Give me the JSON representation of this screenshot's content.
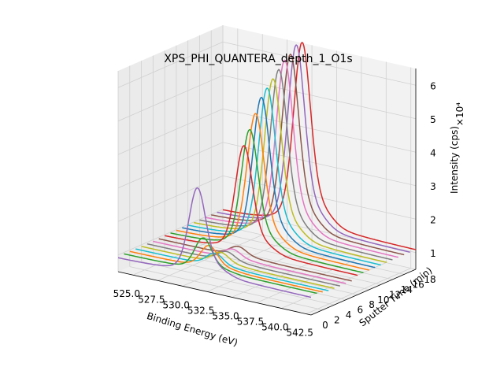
{
  "chart_data": {
    "type": "line",
    "projection": "3d",
    "title": "XPS_PHI_QUANTERA_depth_1_O1s",
    "xlabel": "Binding Energy (eV)",
    "ylabel": "Sputter Time (min)",
    "zlabel": "Intensity (cps)",
    "z_scale_label": "×10⁴",
    "xlim": [
      523.5,
      543.0
    ],
    "x_inverted": true,
    "ylim": [
      0,
      18
    ],
    "zlim": [
      0.5,
      6.5
    ],
    "x_ticks": [
      "542.5",
      "540.0",
      "537.5",
      "535.0",
      "532.5",
      "530.0",
      "527.5",
      "525.0"
    ],
    "x_tick_values": [
      542.5,
      540.0,
      537.5,
      535.0,
      532.5,
      530.0,
      527.5,
      525.0
    ],
    "y_ticks": [
      "0",
      "2",
      "4",
      "6",
      "8",
      "10",
      "12",
      "14",
      "16",
      "18"
    ],
    "y_tick_values": [
      0,
      2,
      4,
      6,
      8,
      10,
      12,
      14,
      16,
      18
    ],
    "z_ticks": [
      "1",
      "2",
      "3",
      "4",
      "5",
      "6"
    ],
    "z_tick_values": [
      1,
      2,
      3,
      4,
      5,
      6
    ],
    "grid": true,
    "legend": "none",
    "peak_center_ev": 531.5,
    "series": [
      {
        "y": 0,
        "color": "#9467bd",
        "baseline": 0.9,
        "peak_height": 2.6
      },
      {
        "y": 1,
        "color": "#2ca02c",
        "baseline": 0.95,
        "peak_height": 1.0
      },
      {
        "y": 2,
        "color": "#ff7f0e",
        "baseline": 0.95,
        "peak_height": 0.7
      },
      {
        "y": 3,
        "color": "#17becf",
        "baseline": 0.95,
        "peak_height": 0.4
      },
      {
        "y": 4,
        "color": "#bcbd22",
        "baseline": 0.95,
        "peak_height": 0.35
      },
      {
        "y": 5,
        "color": "#7f7f7f",
        "baseline": 0.95,
        "peak_height": 0.3
      },
      {
        "y": 6,
        "color": "#e377c2",
        "baseline": 0.95,
        "peak_height": 0.3
      },
      {
        "y": 7,
        "color": "#8c564b",
        "baseline": 0.95,
        "peak_height": 0.3
      },
      {
        "y": 8,
        "color": "#d62728",
        "baseline": 0.95,
        "peak_height": 3.2
      },
      {
        "y": 9,
        "color": "#2ca02c",
        "baseline": 0.95,
        "peak_height": 3.6
      },
      {
        "y": 10,
        "color": "#ff7f0e",
        "baseline": 0.95,
        "peak_height": 4.0
      },
      {
        "y": 11,
        "color": "#1f77b4",
        "baseline": 0.95,
        "peak_height": 4.4
      },
      {
        "y": 12,
        "color": "#17becf",
        "baseline": 0.95,
        "peak_height": 4.6
      },
      {
        "y": 13,
        "color": "#bcbd22",
        "baseline": 0.95,
        "peak_height": 4.8
      },
      {
        "y": 14,
        "color": "#7f7f7f",
        "baseline": 0.95,
        "peak_height": 5.0
      },
      {
        "y": 15,
        "color": "#e377c2",
        "baseline": 0.95,
        "peak_height": 5.2
      },
      {
        "y": 16,
        "color": "#8c564b",
        "baseline": 0.95,
        "peak_height": 5.3
      },
      {
        "y": 17,
        "color": "#9467bd",
        "baseline": 0.95,
        "peak_height": 5.5
      },
      {
        "y": 18,
        "color": "#d62728",
        "baseline": 0.95,
        "peak_height": 5.5
      }
    ]
  }
}
